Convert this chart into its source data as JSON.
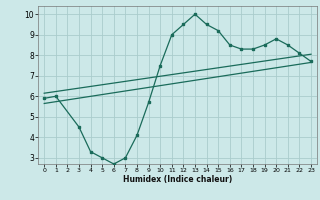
{
  "xlabel": "Humidex (Indice chaleur)",
  "ylabel": "",
  "bg_color": "#cce8e8",
  "grid_color": "#aacccc",
  "line_color": "#1a6b5a",
  "xlim": [
    -0.5,
    23.5
  ],
  "ylim": [
    2.7,
    10.4
  ],
  "xticks": [
    0,
    1,
    2,
    3,
    4,
    5,
    6,
    7,
    8,
    9,
    10,
    11,
    12,
    13,
    14,
    15,
    16,
    17,
    18,
    19,
    20,
    21,
    22,
    23
  ],
  "yticks": [
    3,
    4,
    5,
    6,
    7,
    8,
    9,
    10
  ],
  "curve_x": [
    0,
    1,
    3,
    4,
    5,
    6,
    7,
    8,
    9,
    10,
    11,
    12,
    13,
    14,
    15,
    16,
    17,
    18,
    19,
    20,
    21,
    22,
    23
  ],
  "curve_y": [
    5.9,
    6.0,
    4.5,
    3.3,
    3.0,
    2.7,
    3.0,
    4.1,
    5.7,
    7.5,
    9.0,
    9.5,
    10.0,
    9.5,
    9.2,
    8.5,
    8.3,
    8.3,
    8.5,
    8.8,
    8.5,
    8.1,
    7.7
  ],
  "line1_x": [
    0,
    23
  ],
  "line1_y": [
    6.15,
    8.05
  ],
  "line2_x": [
    0,
    23
  ],
  "line2_y": [
    5.65,
    7.65
  ]
}
